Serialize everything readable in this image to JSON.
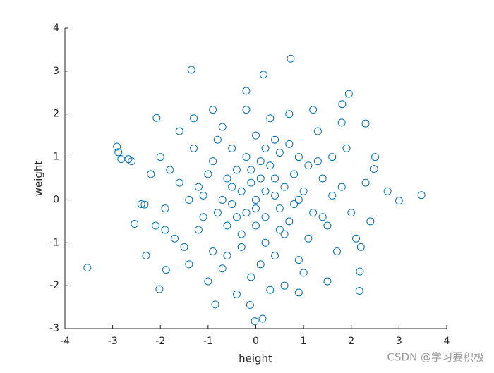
{
  "chart_data": {
    "type": "scatter",
    "xlabel": "height",
    "ylabel": "weight",
    "color": "#0072bd",
    "xlim": [
      -4,
      4
    ],
    "ylim": [
      -3,
      4
    ],
    "xticks": [
      -4,
      -3,
      -2,
      -1,
      0,
      1,
      2,
      3,
      4
    ],
    "yticks": [
      -3,
      -2,
      -1,
      0,
      1,
      2,
      3,
      4
    ],
    "x": [
      -3.53,
      -2.91,
      -2.88,
      -2.82,
      -2.67,
      -2.54,
      -2.33,
      -1.35,
      0.73,
      0.16,
      -0.2,
      3.47,
      3.0,
      2.76,
      1.95,
      -0.02,
      0.14,
      -0.12,
      2.17,
      -2.08,
      -2.02,
      1.81,
      2.3,
      2.48,
      2.18,
      0.9,
      -0.85,
      -1.88,
      -0.5,
      0.2,
      1.1,
      -1.2,
      0.7,
      -0.3,
      0.4,
      -0.9,
      1.5,
      -1.6,
      0.0,
      0.9,
      -0.7,
      1.8,
      -1.9,
      0.3,
      -0.1,
      1.3,
      -1.4,
      2.1,
      -2.2,
      0.6,
      -0.4,
      0.1,
      -0.8,
      1.0,
      -1.1,
      0.5,
      -0.2,
      0.8,
      -0.6,
      1.2,
      -1.3,
      0.2,
      -0.9,
      1.6,
      -1.7,
      0.4,
      -0.3,
      0.7,
      -0.5,
      1.4,
      -1.0,
      0.0,
      0.3,
      -0.7,
      0.9,
      -0.1,
      0.6,
      -0.4,
      1.9,
      -2.0,
      2.3,
      -2.4,
      0.1,
      -0.2,
      1.7,
      -1.5,
      0.5,
      -0.8,
      1.1,
      -1.2,
      0.2,
      -0.3,
      0.8,
      -0.6,
      1.3,
      -1.8,
      2.0,
      -2.1,
      0.4,
      -0.5,
      0.0,
      1.0,
      -1.0,
      0.7,
      -0.9,
      2.5,
      -2.6,
      1.5,
      -1.6,
      0.3,
      -0.4,
      2.2,
      -2.3,
      1.2,
      -1.3,
      0.6,
      -0.7,
      1.8,
      0.9,
      -0.2,
      0.1,
      -1.1,
      0.5,
      1.4,
      -1.4,
      0.2,
      -0.6,
      1.6,
      -1.9,
      2.4,
      0.0,
      0.4,
      -0.1
    ],
    "y": [
      -1.58,
      1.24,
      1.11,
      0.95,
      0.95,
      -0.56,
      -0.11,
      3.03,
      3.29,
      2.92,
      2.54,
      0.11,
      -0.02,
      0.2,
      2.47,
      -2.83,
      -2.77,
      -2.45,
      -2.12,
      1.91,
      -2.08,
      2.23,
      1.78,
      0.72,
      -1.67,
      -2.16,
      -2.44,
      -1.63,
      0.3,
      -0.4,
      0.8,
      -0.7,
      1.3,
      -1.1,
      0.1,
      0.9,
      -0.6,
      0.4,
      0.0,
      -1.4,
      1.7,
      0.3,
      -0.2,
      1.9,
      -1.8,
      1.6,
      -1.5,
      -0.9,
      0.6,
      -0.8,
      0.7,
      0.5,
      -0.3,
      0.2,
      0.1,
      -0.2,
      1.0,
      0.6,
      -0.6,
      -0.3,
      1.2,
      -1.0,
      -1.2,
      1.0,
      -0.9,
      1.4,
      0.2,
      -0.5,
      -0.1,
      0.5,
      0.6,
      -0.6,
      0.8,
      0.0,
      0.0,
      0.4,
      0.3,
      -0.4,
      1.2,
      1.0,
      0.4,
      -0.1,
      -1.5,
      2.1,
      -1.2,
      -1.1,
      1.1,
      1.4,
      -0.9,
      0.3,
      0.2,
      -0.8,
      -0.1,
      0.5,
      0.9,
      0.7,
      -0.3,
      -0.6,
      -1.3,
      1.2,
      1.5,
      -1.7,
      -1.9,
      2.0,
      2.1,
      1.0,
      0.9,
      -1.9,
      1.6,
      -2.1,
      -2.2,
      -1.1,
      -1.3,
      2.1,
      1.9,
      -2.0,
      -1.6,
      1.8,
      1.0,
      -0.3,
      0.9,
      -0.4,
      -0.7,
      -0.4,
      0.0,
      1.2,
      -1.3,
      0.1,
      -0.7,
      -0.5,
      -0.2,
      0.5,
      0.7
    ]
  },
  "watermark": "CSDN @学习要积极"
}
